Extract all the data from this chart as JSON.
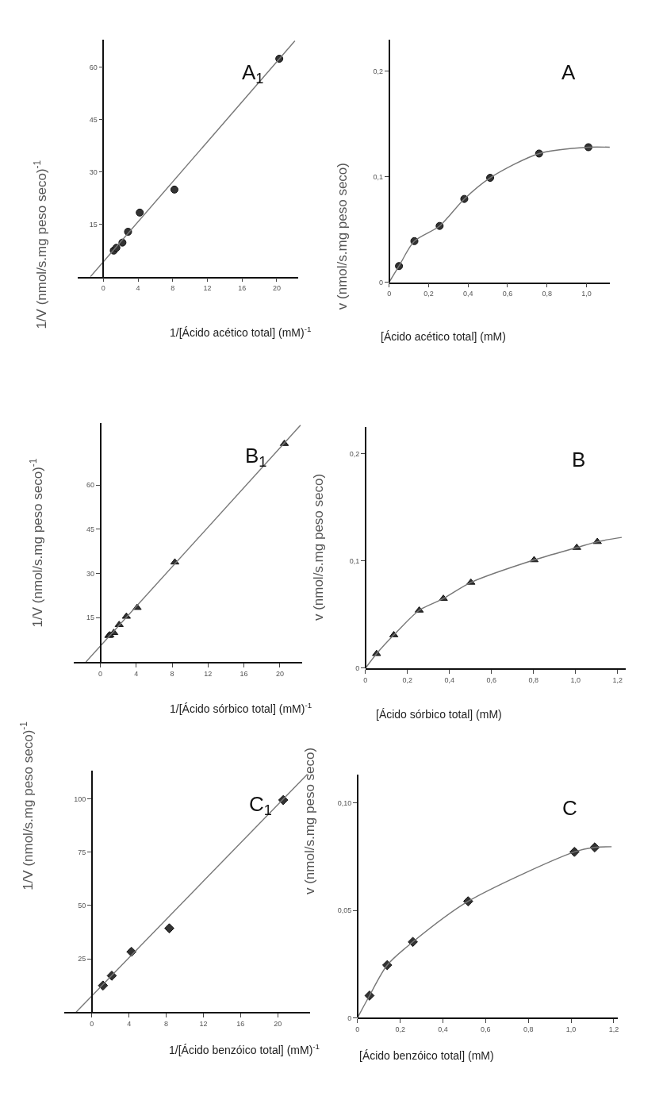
{
  "chart_data": [
    {
      "type": "scatter",
      "title": "A$_{1}$",
      "xlabel": "1/[Ácido acético total] (mM)$^{-1}$",
      "ylabel": "1/V (nmol/s.mg peso seco)$^{-1}$",
      "xlim": [
        -3,
        22.5
      ],
      "ylim": [
        0,
        68
      ],
      "xticks": [
        0,
        4,
        8,
        12,
        16,
        20
      ],
      "yticks": [
        15,
        30,
        45,
        60
      ],
      "series": [
        {
          "marker": "circle",
          "color": "#333333",
          "x": [
            1.2,
            1.5,
            2.2,
            2.85,
            4.2,
            8.2,
            20.3
          ],
          "values": [
            7.5,
            8.3,
            9.8,
            12.9,
            18.4,
            25,
            62.5
          ]
        },
        {
          "type": "line",
          "marker": "none",
          "color": "#777777",
          "x": [
            -1.5,
            22.1
          ],
          "values": [
            0,
            67.6
          ]
        }
      ]
    },
    {
      "type": "scatter",
      "title": "A",
      "xlabel": "[Ácido acético total] (mM)",
      "ylabel": "v (nmol/s.mg peso seco)",
      "xlim": [
        0,
        1.12
      ],
      "ylim": [
        0,
        0.23
      ],
      "xticks": [
        0,
        {
          "value": 0.2,
          "label": "0,2"
        },
        {
          "value": 0.4,
          "label": "0,4"
        },
        {
          "value": 0.6,
          "label": "0,6"
        },
        {
          "value": 0.8,
          "label": "0,8"
        },
        {
          "value": 1.0,
          "label": "1,0"
        }
      ],
      "yticks": [
        0,
        {
          "value": 0.1,
          "label": "0,1"
        },
        {
          "value": 0.2,
          "label": "0,2"
        }
      ],
      "series": [
        {
          "marker": "circle",
          "color": "#333333",
          "x": [
            0.05,
            0.128,
            0.256,
            0.381,
            0.512,
            0.76,
            1.01
          ],
          "values": [
            0.0154,
            0.039,
            0.0534,
            0.079,
            0.099,
            0.122,
            0.128
          ]
        },
        {
          "type": "line",
          "marker": "none",
          "color": "#777777",
          "x": [
            0,
            0.05,
            0.128,
            0.256,
            0.381,
            0.512,
            0.76,
            1.01,
            1.118
          ],
          "values": [
            0,
            0.0154,
            0.039,
            0.0534,
            0.079,
            0.099,
            0.122,
            0.128,
            0.128
          ]
        }
      ]
    },
    {
      "type": "scatter",
      "title": "B$_{1}$",
      "xlabel": "1/[Ácido sórbico total] (mM)$^{-1}$",
      "ylabel": "1/V (nmol/s.mg peso seco)$^{-1}$",
      "xlim": [
        -3,
        22.5
      ],
      "ylim": [
        0,
        81
      ],
      "xticks": [
        0,
        4,
        8,
        12,
        16,
        20
      ],
      "yticks": [
        15,
        30,
        45,
        60
      ],
      "series": [
        {
          "marker": "triangle",
          "color": "#333333",
          "x": [
            0.94,
            1.06,
            1.5,
            2.1,
            2.9,
            4.1,
            8.3,
            20.5
          ],
          "values": [
            8.9,
            9.1,
            9.9,
            12.6,
            15.4,
            18.4,
            33.8,
            74
          ]
        },
        {
          "type": "line",
          "marker": "none",
          "color": "#777777",
          "x": [
            -1.6,
            22.3
          ],
          "values": [
            0,
            80.3
          ]
        }
      ]
    },
    {
      "type": "scatter",
      "title": "B",
      "xlabel": "[Ácido sórbico total] (mM)",
      "ylabel": "v (nmol/s.mg peso seco)",
      "xlim": [
        0,
        1.24
      ],
      "ylim": [
        0,
        0.225
      ],
      "xticks": [
        0,
        {
          "value": 0.2,
          "label": "0,2"
        },
        {
          "value": 0.4,
          "label": "0,4"
        },
        {
          "value": 0.6,
          "label": "0,6"
        },
        {
          "value": 0.8,
          "label": "0,8"
        },
        {
          "value": 1.0,
          "label": "1,0"
        },
        {
          "value": 1.2,
          "label": "1,2"
        }
      ],
      "yticks": [
        0,
        {
          "value": 0.1,
          "label": "0,1"
        },
        {
          "value": 0.2,
          "label": "0,2"
        }
      ],
      "series": [
        {
          "marker": "triangle",
          "color": "#333333",
          "x": [
            0.053,
            0.135,
            0.256,
            0.371,
            0.502,
            0.803,
            1.006,
            1.104
          ],
          "values": [
            0.0135,
            0.031,
            0.054,
            0.065,
            0.08,
            0.101,
            0.1125,
            0.118
          ]
        },
        {
          "type": "line",
          "marker": "none",
          "color": "#777777",
          "x": [
            0,
            0.053,
            0.135,
            0.256,
            0.371,
            0.502,
            0.803,
            1.006,
            1.104,
            1.22
          ],
          "values": [
            0,
            0.0135,
            0.031,
            0.054,
            0.065,
            0.08,
            0.101,
            0.1125,
            0.118,
            0.122
          ]
        }
      ]
    },
    {
      "type": "scatter",
      "title": "C$_{1}$",
      "xlabel": "1/[Ácido benzóico total] (mM)$^{-1}$",
      "ylabel": "1/V (nmol/s.mg peso seco)$^{-1}$",
      "xlim": [
        -3,
        23.5
      ],
      "ylim": [
        0,
        113
      ],
      "xticks": [
        0,
        4,
        8,
        12,
        16,
        20
      ],
      "yticks": [
        25,
        50,
        75,
        100
      ],
      "series": [
        {
          "marker": "diamond",
          "color": "#333333",
          "x": [
            1.2,
            2.15,
            4.26,
            8.34,
            20.6
          ],
          "values": [
            12.5,
            17.1,
            28.3,
            39.3,
            99.4
          ]
        },
        {
          "type": "line",
          "marker": "none",
          "color": "#777777",
          "x": [
            -1.7,
            23.2
          ],
          "values": [
            0,
            111.5
          ]
        }
      ]
    },
    {
      "type": "scatter",
      "title": "C",
      "xlabel": "[Ácido benzóico total] (mM)",
      "ylabel": "v (nmol/s.mg peso seco)",
      "xlim": [
        0,
        1.22
      ],
      "ylim": [
        0,
        0.113
      ],
      "xticks": [
        0,
        {
          "value": 0.2,
          "label": "0,2"
        },
        {
          "value": 0.4,
          "label": "0,4"
        },
        {
          "value": 0.6,
          "label": "0,6"
        },
        {
          "value": 0.8,
          "label": "0,8"
        },
        {
          "value": 1.0,
          "label": "1,0"
        },
        {
          "value": 1.2,
          "label": "1,2"
        }
      ],
      "yticks": [
        0,
        {
          "value": 0.05,
          "label": "0,05"
        },
        {
          "value": 0.1,
          "label": "0,10"
        }
      ],
      "series": [
        {
          "marker": "diamond",
          "color": "#333333",
          "x": [
            0.056,
            0.139,
            0.259,
            0.518,
            1.016,
            1.111
          ],
          "values": [
            0.0103,
            0.0245,
            0.0353,
            0.0542,
            0.0772,
            0.0793
          ]
        },
        {
          "type": "line",
          "marker": "none",
          "color": "#777777",
          "x": [
            0,
            0.056,
            0.139,
            0.259,
            0.518,
            1.016,
            1.111,
            1.19
          ],
          "values": [
            0,
            0.0103,
            0.0245,
            0.0353,
            0.0542,
            0.0772,
            0.0793,
            0.0796
          ]
        }
      ]
    }
  ]
}
